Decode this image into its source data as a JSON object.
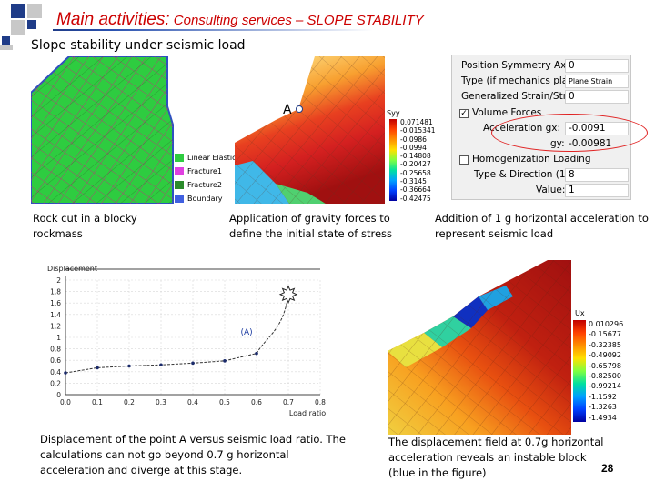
{
  "header": {
    "title_main": "Main activities:",
    "title_sub": " Consulting services – SLOPE STABILITY",
    "subtitle": "Slope stability under seismic load"
  },
  "colors": {
    "title": "#cc0000",
    "accent_blue": "#1f3c88",
    "model_green": "#2ecc40",
    "highlight": "#e02020"
  },
  "figure1": {
    "legend": [
      {
        "label": "Linear Elastic",
        "color": "#2ecc40"
      },
      {
        "label": "Fracture1",
        "color": "#e040e0"
      },
      {
        "label": "Fracture2",
        "color": "#2a8a2a"
      },
      {
        "label": "Boundary",
        "color": "#4060e0"
      }
    ],
    "caption": "Rock cut in a blocky rockmass"
  },
  "figure2": {
    "point_label": "A",
    "colorbar_title": "Syy",
    "colorbar_values": [
      "0.071481",
      "-0.015341",
      "-0.0986",
      "-0.0994",
      "-0.14808",
      "-0.20427",
      "-0.25658",
      "-0.3145",
      "-0.36664",
      "-0.42475"
    ],
    "caption": "Application of gravity forces to define the initial state of stress"
  },
  "panel": {
    "rows": [
      {
        "label": "Position Symmetry Axis:",
        "value": "0"
      },
      {
        "label": "Type (if mechanics plane):",
        "value": "Plane Strain"
      },
      {
        "label": "Generalized Strain/Stress:",
        "value": "0"
      },
      {
        "label": "Volume Forces",
        "checked": "✓"
      },
      {
        "label": "Acceleration gx:",
        "value": "-0.0091"
      },
      {
        "label": "gy:",
        "value": "-0.00981"
      },
      {
        "label": "Homogenization Loading",
        "checked": ""
      },
      {
        "label": "Type & Direction (1-8):",
        "value": "8"
      },
      {
        "label": "Value:",
        "value": "1"
      }
    ]
  },
  "figure3_caption": "Addition of 1 g horizontal acceleration to represent seismic load",
  "chart_data": {
    "type": "line",
    "title": "Displacement",
    "xlabel": "Load ratio",
    "ylabel": "",
    "x": [
      0.0,
      0.1,
      0.2,
      0.3,
      0.4,
      0.5,
      0.6,
      0.7
    ],
    "values": [
      0.38,
      0.47,
      0.5,
      0.52,
      0.55,
      0.59,
      0.72,
      1.75
    ],
    "xticks": [
      "0.0",
      "0.1",
      "0.2",
      "0.3",
      "0.4",
      "0.5",
      "0.6",
      "0.7",
      "0.8"
    ],
    "yticks": [
      "0",
      "0.2",
      "0.4",
      "0.6",
      "0.8",
      "1",
      "1.2",
      "1.4",
      "1.6",
      "1.8",
      "2"
    ],
    "xlim": [
      0,
      0.8
    ],
    "ylim": [
      0,
      2
    ],
    "annotation": "(A)",
    "grid": true
  },
  "chart_caption": "Displacement of the point A versus seismic load ratio. The calculations can not go beyond 0.7 g horizontal acceleration and diverge at this stage.",
  "figure4": {
    "colorbar_title": "Ux",
    "colorbar_values": [
      "0.010296",
      "-0.15677",
      "-0.32385",
      "-0.49092",
      "-0.65798",
      "-0.82500",
      "-0.99214",
      "-1.1592",
      "-1.3263",
      "-1.4934"
    ],
    "caption": "The displacement field at 0.7g horizontal acceleration reveals an instable block (blue in the figure)"
  },
  "page_number": "28"
}
